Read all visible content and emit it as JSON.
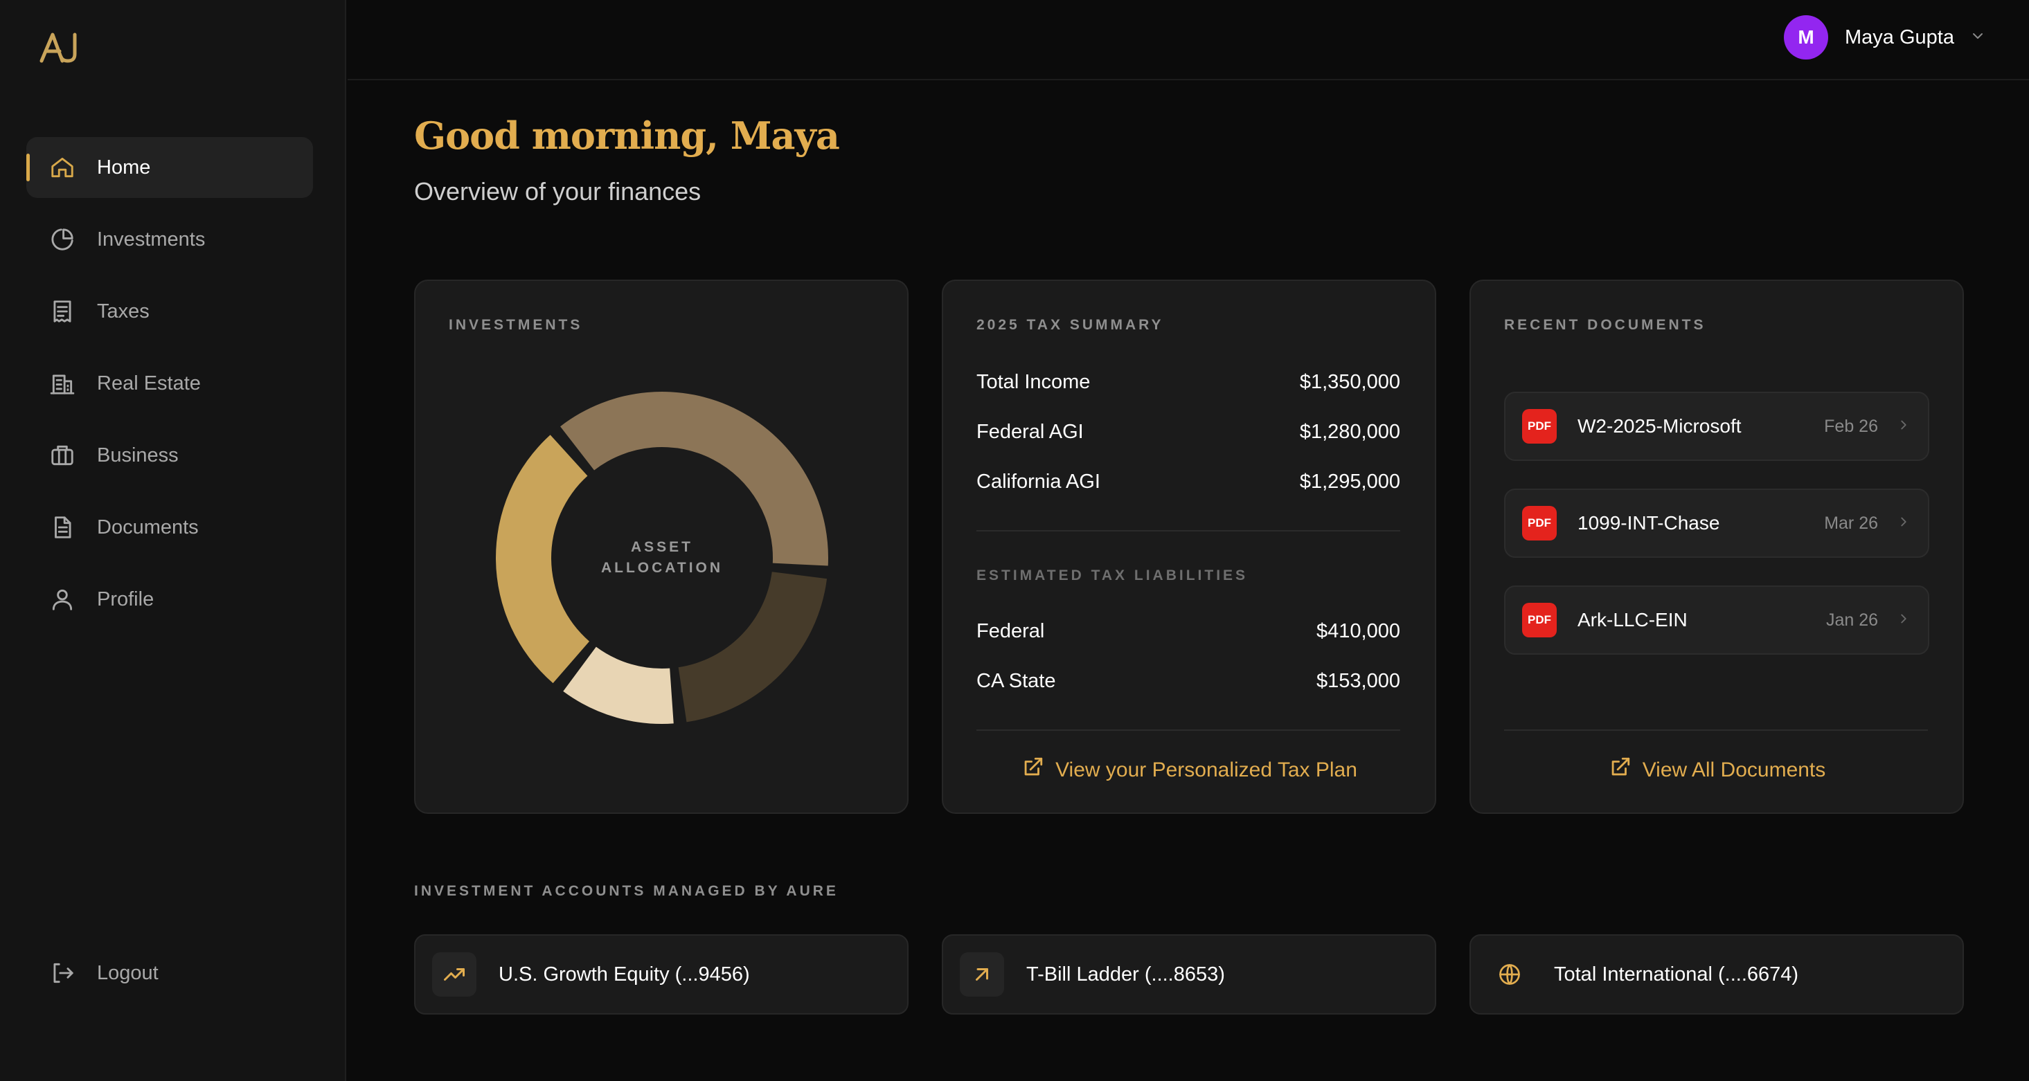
{
  "app": {
    "brand_mark": "AJ"
  },
  "sidebar": {
    "items": [
      {
        "label": "Home",
        "icon": "home-icon",
        "active": true
      },
      {
        "label": "Investments",
        "icon": "pie-chart-icon"
      },
      {
        "label": "Taxes",
        "icon": "receipt-icon"
      },
      {
        "label": "Real Estate",
        "icon": "building-icon"
      },
      {
        "label": "Business",
        "icon": "briefcase-icon"
      },
      {
        "label": "Documents",
        "icon": "document-icon"
      },
      {
        "label": "Profile",
        "icon": "user-icon"
      }
    ],
    "logout_label": "Logout"
  },
  "header": {
    "user_initial": "M",
    "user_name": "Maya Gupta"
  },
  "greeting": {
    "title": "Good morning, Maya",
    "subtitle": "Overview of your finances"
  },
  "investments_card": {
    "label": "INVESTMENTS",
    "center_line1": "ASSET",
    "center_line2": "ALLOCATION"
  },
  "chart_data": {
    "type": "pie",
    "title": "ASSET ALLOCATION",
    "slices": [
      {
        "value": 36,
        "color": "#8c7557"
      },
      {
        "value": 21,
        "color": "#463b2a"
      },
      {
        "value": 12,
        "color": "#e8d5b4"
      },
      {
        "value": 27,
        "color": "#c9a45a"
      }
    ]
  },
  "tax_summary": {
    "label": "2025 TAX SUMMARY",
    "rows": [
      {
        "label": "Total Income",
        "value": "$1,350,000"
      },
      {
        "label": "Federal AGI",
        "value": "$1,280,000"
      },
      {
        "label": "California AGI",
        "value": "$1,295,000"
      }
    ],
    "liabilities_label": "ESTIMATED TAX LIABILITIES",
    "liabilities": [
      {
        "label": "Federal",
        "value": "$410,000"
      },
      {
        "label": "CA State",
        "value": "$153,000"
      }
    ],
    "link_label": "View your Personalized Tax Plan"
  },
  "documents": {
    "label": "RECENT DOCUMENTS",
    "badge": "PDF",
    "items": [
      {
        "name": "W2-2025-Microsoft",
        "date": "Feb 26"
      },
      {
        "name": "1099-INT-Chase",
        "date": "Mar 26"
      },
      {
        "name": "Ark-LLC-EIN",
        "date": "Jan 26"
      }
    ],
    "link_label": "View All Documents"
  },
  "accounts": {
    "label": "INVESTMENT ACCOUNTS MANAGED BY AURE",
    "items": [
      {
        "name": "U.S. Growth Equity (...9456)",
        "icon": "trending-up-icon"
      },
      {
        "name": "T-Bill Ladder (....8653)",
        "icon": "arrow-up-right-icon"
      },
      {
        "name": "Total International (....6674)",
        "icon": "globe-icon"
      }
    ]
  },
  "colors": {
    "accent": "#e2ad4f",
    "avatar": "#9326f0",
    "pdf": "#e4231d"
  }
}
